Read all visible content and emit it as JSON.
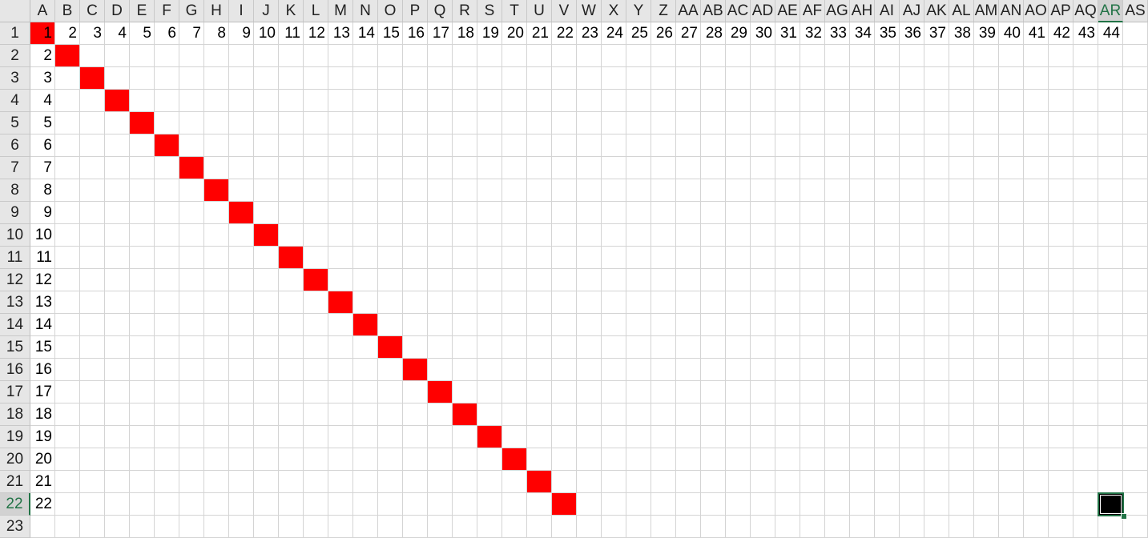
{
  "columns": [
    "A",
    "B",
    "C",
    "D",
    "E",
    "F",
    "G",
    "H",
    "I",
    "J",
    "K",
    "L",
    "M",
    "N",
    "O",
    "P",
    "Q",
    "R",
    "S",
    "T",
    "U",
    "V",
    "W",
    "X",
    "Y",
    "Z",
    "AA",
    "AB",
    "AC",
    "AD",
    "AE",
    "AF",
    "AG",
    "AH",
    "AI",
    "AJ",
    "AK",
    "AL",
    "AM",
    "AN",
    "AO",
    "AP",
    "AQ",
    "AR",
    "AS"
  ],
  "rows": [
    "1",
    "2",
    "3",
    "4",
    "5",
    "6",
    "7",
    "8",
    "9",
    "10",
    "11",
    "12",
    "13",
    "14",
    "15",
    "16",
    "17",
    "18",
    "19",
    "20",
    "21",
    "22",
    "23"
  ],
  "row1_values": [
    "1",
    "2",
    "3",
    "4",
    "5",
    "6",
    "7",
    "8",
    "9",
    "10",
    "11",
    "12",
    "13",
    "14",
    "15",
    "16",
    "17",
    "18",
    "19",
    "20",
    "21",
    "22",
    "23",
    "24",
    "25",
    "26",
    "27",
    "28",
    "29",
    "30",
    "31",
    "32",
    "33",
    "34",
    "35",
    "36",
    "37",
    "38",
    "39",
    "40",
    "41",
    "42",
    "43",
    "44"
  ],
  "colA_values": [
    "",
    "2",
    "3",
    "4",
    "5",
    "6",
    "7",
    "8",
    "9",
    "10",
    "11",
    "12",
    "13",
    "14",
    "15",
    "16",
    "17",
    "18",
    "19",
    "20",
    "21",
    "22"
  ],
  "diagonal_fill_color": "#ff0000",
  "diagonal_count": 22,
  "active_cell": {
    "column": "AR",
    "row": "22",
    "fill_color": "#000000"
  },
  "accent_color": "#217346"
}
